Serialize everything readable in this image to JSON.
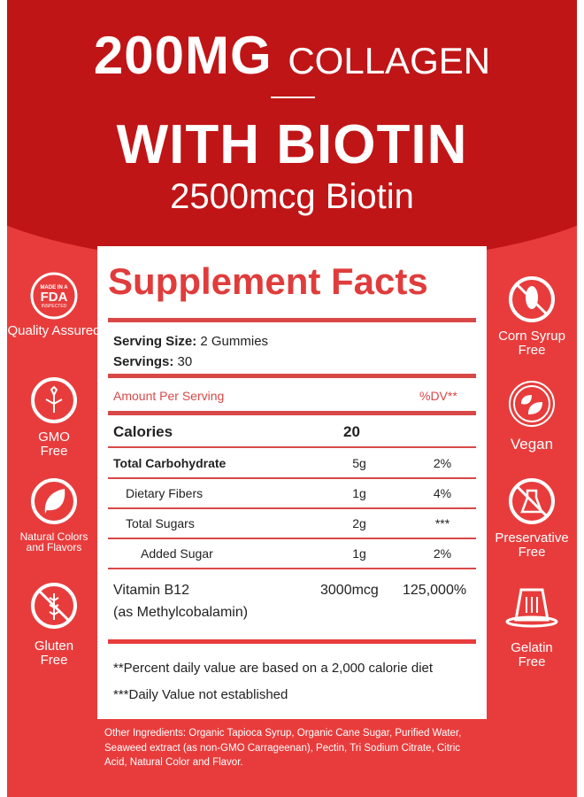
{
  "header": {
    "amount": "200MG",
    "amount_suffix": "COLLAGEN",
    "with": "WITH BIOTIN",
    "biotin": "2500mcg Biotin"
  },
  "colors": {
    "band": "#c01517",
    "background": "#e83c3c",
    "accent": "#d84848"
  },
  "left_badges": [
    {
      "icon": "fda-seal-icon",
      "seal_text": "MADE IN A FDA INSPECTED FACILITY",
      "label": "Quality Assured"
    },
    {
      "icon": "plant-icon",
      "label": "GMO Free"
    },
    {
      "icon": "leaf-icon",
      "label": "Natural Colors and Flavors"
    },
    {
      "icon": "no-wheat-icon",
      "label": "Gluten Free"
    }
  ],
  "right_badges": [
    {
      "icon": "no-corn-icon",
      "label": "Corn Syrup Free"
    },
    {
      "icon": "leaves-icon",
      "label": "Vegan"
    },
    {
      "icon": "no-flask-icon",
      "label": "Preservative Free"
    },
    {
      "icon": "gelatin-icon",
      "label": "Gelatin Free"
    }
  ],
  "facts": {
    "title": "Supplement Facts",
    "serving_size_label": "Serving Size:",
    "serving_size": "2 Gummies",
    "servings_label": "Servings:",
    "servings": "30",
    "amount_header": "Amount Per Serving",
    "dv_header": "%DV**",
    "calories_label": "Calories",
    "calories": "20",
    "rows": [
      {
        "name": "Total Carbohydrate",
        "amount": "5g",
        "dv": "2%"
      },
      {
        "name": "Dietary Fibers",
        "amount": "1g",
        "dv": "4%"
      },
      {
        "name": "Total Sugars",
        "amount": "2g",
        "dv": "***"
      },
      {
        "name": "Added Sugar",
        "amount": "1g",
        "dv": "2%"
      }
    ],
    "vitamin": {
      "name": "Vitamin B12",
      "sub": "(as Methylcobalamin)",
      "amount": "3000mcg",
      "dv": "125,000%"
    },
    "note1": "**Percent daily value are based on a 2,000 calorie diet",
    "note2": "***Daily Value not established"
  },
  "other_ingredients": "Other Ingredients: Organic Tapioca Syrup, Organic Cane Sugar, Purified Water, Seaweed extract (as non-GMO Carrageenan), Pectin, Tri Sodium Citrate, Citric Acid, Natural Color and Flavor."
}
